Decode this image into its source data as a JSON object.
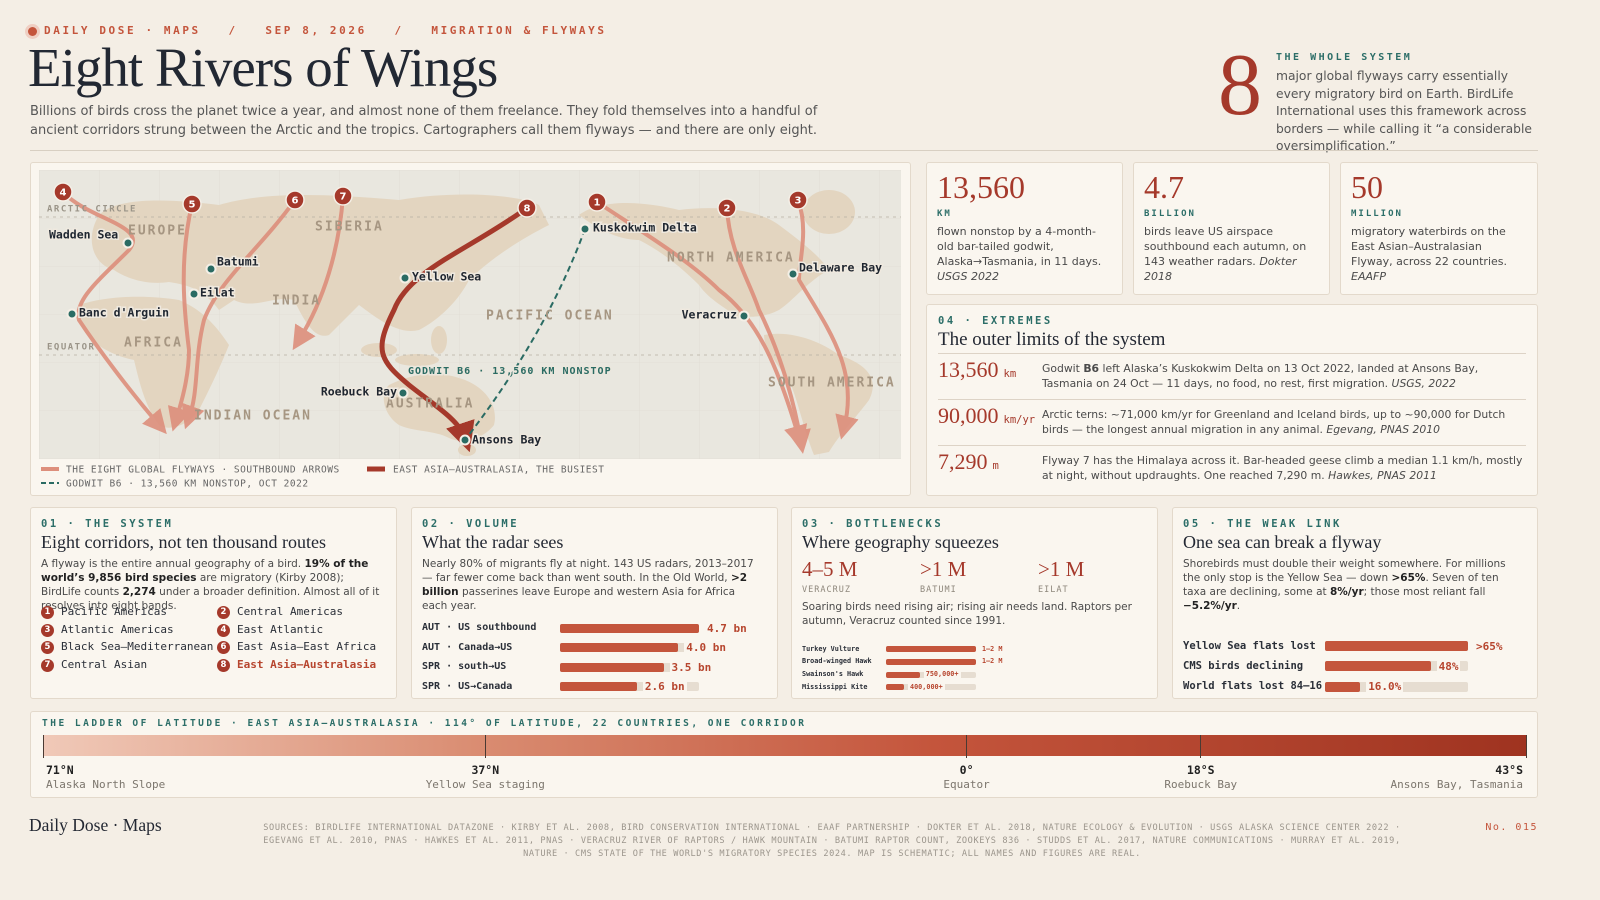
{
  "header": {
    "kicker": "DAILY DOSE · MAPS   /   SEP 8, 2026   /   MIGRATION & FLYWAYS",
    "title": "Eight Rivers of Wings",
    "dek": "Billions of birds cross the planet twice a year, and almost none of them freelance. They fold themselves into a handful of ancient corridors strung between the Arctic and the tropics. Cartographers call them flyways — and there are only eight."
  },
  "hero": {
    "number": 8,
    "label": "THE WHOLE SYSTEM",
    "text": "major global flyways carry essentially every migratory bird on Earth. BirdLife International uses this framework across borders — while calling it “a considerable oversimplification.”"
  },
  "map": {
    "regions": [
      "ARCTIC CIRCLE",
      "EUROPE",
      "SIBERIA",
      "INDIA",
      "AFRICA",
      "EQUATOR",
      "INDIAN OCEAN",
      "AUSTRALIA",
      "PACIFIC OCEAN",
      "NORTH AMERICA",
      "SOUTH AMERICA"
    ],
    "sites": [
      "Wadden Sea",
      "Batumi",
      "Eilat",
      "Banc d'Arguin",
      "Yellow Sea",
      "Roebuck Bay",
      "Ansons Bay",
      "Kuskokwim Delta",
      "Veracruz",
      "Delaware Bay"
    ],
    "markers": [
      4,
      5,
      6,
      7,
      8,
      1,
      2,
      3
    ],
    "annotation": "GODWIT B6 · 13,560 KM NONSTOP",
    "legend": [
      "THE EIGHT GLOBAL FLYWAYS · SOUTHBOUND ARROWS",
      "EAST ASIA–AUSTRALASIA, THE BUSIEST",
      "GODWIT B6 · 13,560 KM NONSTOP, OCT 2022"
    ]
  },
  "stats": [
    {
      "value": "13,560",
      "unit": "KM",
      "text": [
        "flown nonstop by a 4-month-old bar-tailed godwit, Alaska→Tasmania, in 11 days. ",
        {
          "em": "USGS 2022"
        }
      ]
    },
    {
      "value": "4.7",
      "unit": "BILLION",
      "text": [
        "birds leave US airspace southbound each autumn, on 143 weather radars. ",
        {
          "em": "Dokter 2018"
        }
      ]
    },
    {
      "value": "50",
      "unit": "MILLION",
      "text": [
        "migratory waterbirds on the East Asian–Australasian Flyway, across 22 countries. ",
        {
          "em": "EAAFP"
        }
      ]
    }
  ],
  "extremes": {
    "tag": "04 · EXTREMES",
    "title": "The outer limits of the system",
    "rows": [
      {
        "value": "13,560",
        "unit": "km",
        "text": [
          "Godwit ",
          {
            "b": "B6"
          },
          " left Alaska’s Kuskokwim Delta on 13 Oct 2022, landed at Ansons Bay, Tasmania on 24 Oct — 11 days, no food, no rest, first migration. ",
          {
            "em": "USGS, 2022"
          }
        ]
      },
      {
        "value": "90,000",
        "unit": "km/yr",
        "text": [
          "Arctic terns: ~71,000 km/yr for Greenland and Iceland birds, up to ~90,000 for Dutch birds — the longest annual migration in any animal. ",
          {
            "em": "Egevang, PNAS 2010"
          }
        ]
      },
      {
        "value": "7,290",
        "unit": "m",
        "text": [
          "Flyway 7 has the Himalaya across it. Bar-headed geese climb a median 1.1 km/h, mostly at night, without updraughts. One reached 7,290 m. ",
          {
            "em": "Hawkes, PNAS 2011"
          }
        ]
      }
    ]
  },
  "system": {
    "tag": "01 · THE SYSTEM",
    "title": "Eight corridors, not ten thousand routes",
    "text": [
      "A flyway is the entire annual geography of a bird. ",
      {
        "b": "19% of the world’s 9,856 bird species"
      },
      " are migratory (Kirby 2008); BirdLife counts ",
      {
        "b": "2,274"
      },
      " under a broader definition. Almost all of it resolves into eight bands."
    ],
    "flyways": [
      {
        "n": 1,
        "name": "Pacific Americas"
      },
      {
        "n": 2,
        "name": "Central Americas"
      },
      {
        "n": 3,
        "name": "Atlantic Americas"
      },
      {
        "n": 4,
        "name": "East Atlantic"
      },
      {
        "n": 5,
        "name": "Black Sea–Mediterranean"
      },
      {
        "n": 6,
        "name": "East Asia–East Africa"
      },
      {
        "n": 7,
        "name": "Central Asian"
      },
      {
        "n": 8,
        "name": "East Asia–Australasia"
      }
    ]
  },
  "volume": {
    "tag": "02 · VOLUME",
    "title": "What the radar sees",
    "text": [
      "Nearly 80% of migrants fly at night. 143 US radars, 2013–2017 — far fewer come back than went south. In the Old World, ",
      {
        "b": ">2 billion"
      },
      " passerines leave Europe and western Asia for Africa each year."
    ],
    "chart": {
      "type": "bar",
      "categories": [
        "AUT · US southbound",
        "AUT · Canada→US",
        "SPR · south→US",
        "SPR · US→Canada"
      ],
      "values": [
        4.7,
        4.0,
        3.5,
        2.6
      ],
      "value_labels": [
        "4.7 bn",
        "4.0 bn",
        "3.5 bn",
        "2.6 bn"
      ],
      "xlim": [
        0,
        4.7
      ],
      "color": "#c4553c"
    }
  },
  "bottlenecks": {
    "tag": "03 · BOTTLENECKS",
    "title": "Where geography squeezes",
    "figures": [
      {
        "value": "4–5 M",
        "label": "VERACRUZ"
      },
      {
        "value": ">1 M",
        "label": "BATUMI"
      },
      {
        "value": ">1 M",
        "label": "EILAT"
      }
    ],
    "text": "Soaring birds need rising air; rising air needs land. Raptors per autumn, Veracruz counted since 1991.",
    "chart": {
      "type": "bar",
      "categories": [
        "Turkey Vulture",
        "Broad-winged Hawk",
        "Swainson's Hawk",
        "Mississippi Kite"
      ],
      "values": [
        2000000,
        2000000,
        750000,
        400000
      ],
      "value_labels": [
        "1–2 M",
        "1–2 M",
        "750,000+",
        "400,000+"
      ],
      "xlim": [
        0,
        2000000
      ],
      "color": "#c4553c"
    }
  },
  "weak_link": {
    "tag": "05 · THE WEAK LINK",
    "title": "One sea can break a flyway",
    "text": [
      "Shorebirds must double their weight somewhere. For millions the only stop is the Yellow Sea — down ",
      {
        "b": ">65%"
      },
      ". Seven of ten taxa are declining, some at ",
      {
        "b": "8%/yr"
      },
      "; those most reliant fall ",
      {
        "b": "−5.2%/yr"
      },
      "."
    ],
    "chart": {
      "type": "bar",
      "categories": [
        "Yellow Sea flats lost",
        "CMS birds declining",
        "World flats lost 84–16"
      ],
      "values": [
        65,
        48,
        16.0
      ],
      "value_labels": [
        ">65%",
        "48%",
        "16.0%"
      ],
      "xlim": [
        0,
        65
      ],
      "color": "#c4553c"
    }
  },
  "ladder": {
    "title": "THE LADDER OF LATITUDE · EAST ASIA–AUSTRALASIA · 114° OF LATITUDE, 22 COUNTRIES, ONE CORRIDOR",
    "lim": [
      71,
      -43
    ],
    "ticks": [
      {
        "value": 71,
        "label": "71°N"
      },
      {
        "value": 37,
        "label": "37°N"
      },
      {
        "value": 0,
        "label": "0°"
      },
      {
        "value": -18,
        "label": "18°S"
      },
      {
        "value": -43,
        "label": "43°S"
      }
    ],
    "places": [
      "Alaska North Slope",
      "Yellow Sea staging",
      "Equator",
      "Roebuck Bay",
      "Ansons Bay, Tasmania"
    ]
  },
  "footer": {
    "brand": "Daily Dose · Maps",
    "sources": "SOURCES: BIRDLIFE INTERNATIONAL DATAZONE · KIRBY ET AL. 2008, BIRD CONSERVATION INTERNATIONAL · EAAF PARTNERSHIP · DOKTER ET AL. 2018, NATURE ECOLOGY & EVOLUTION · USGS ALASKA SCIENCE CENTER 2022 · EGEVANG ET AL. 2010, PNAS · HAWKES ET AL. 2011, PNAS · VERACRUZ RIVER OF RAPTORS / HAWK MOUNTAIN · BATUMI RAPTOR COUNT, ZOOKEYS 836 · STUDDS ET AL. 2017, NATURE COMMUNICATIONS · MURRAY ET AL. 2019, NATURE · CMS STATE OF THE WORLD'S MIGRATORY SPECIES 2024. MAP IS SCHEMATIC; ALL NAMES AND FIGURES ARE REAL.",
    "issue": "No. 015"
  }
}
